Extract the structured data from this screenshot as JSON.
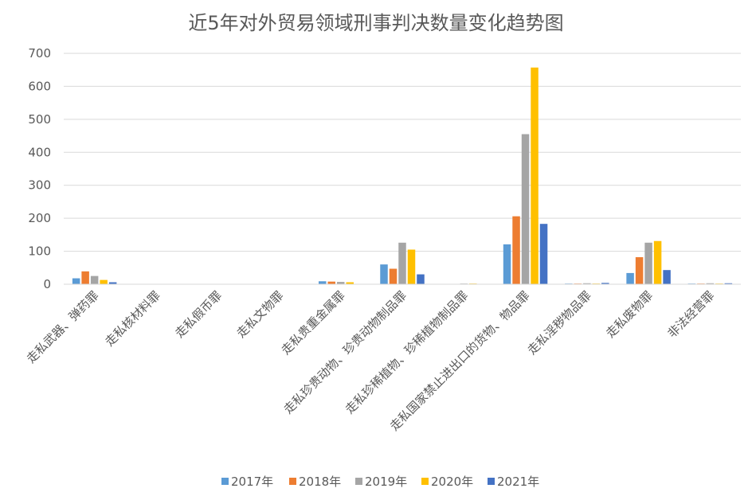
{
  "chart_data": {
    "type": "bar",
    "title": "近5年对外贸易领域刑事判决数量变化趋势图",
    "xlabel": "",
    "ylabel": "",
    "ylim": [
      0,
      700
    ],
    "yticks": [
      "0",
      "100",
      "200",
      "300",
      "400",
      "500",
      "600",
      "700"
    ],
    "grid": true,
    "legend_position": "bottom",
    "categories": [
      "走私武器、弹药罪",
      "走私核材料罪",
      "走私假币罪",
      "走私文物罪",
      "走私贵重金属罪",
      "走私珍贵动物、珍贵动物制品罪",
      "走私珍稀植物、珍稀植物制品罪",
      "走私国家禁止进出口的货物、物品罪",
      "走私淫秽物品罪",
      "走私废物罪",
      "非法经营罪"
    ],
    "series": [
      {
        "name": "2017年",
        "color": "#5B9BD5",
        "values": [
          18,
          0,
          0,
          0,
          9,
          60,
          1,
          121,
          2,
          34,
          2
        ]
      },
      {
        "name": "2018年",
        "color": "#ED7D31",
        "values": [
          39,
          0,
          0,
          0,
          8,
          47,
          1,
          206,
          2,
          82,
          2
        ]
      },
      {
        "name": "2019年",
        "color": "#A5A5A5",
        "values": [
          25,
          0,
          0,
          0,
          7,
          126,
          2,
          455,
          3,
          126,
          3
        ]
      },
      {
        "name": "2020年",
        "color": "#FFC000",
        "values": [
          13,
          0,
          0,
          0,
          6,
          105,
          2,
          657,
          2,
          131,
          2
        ]
      },
      {
        "name": "2021年",
        "color": "#4472C4",
        "values": [
          6,
          0,
          0,
          0,
          0,
          30,
          0,
          183,
          4,
          43,
          3
        ]
      }
    ]
  }
}
